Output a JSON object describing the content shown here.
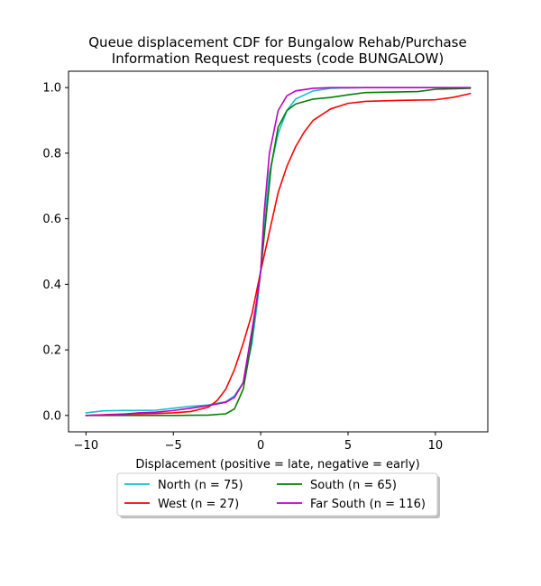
{
  "chart_data": {
    "type": "line",
    "title_lines": [
      "Queue displacement CDF for Bungalow Rehab/Purchase",
      "Information Request  requests (code BUNGALOW)"
    ],
    "xlabel": "Displacement (positive = late, negative = early)",
    "ylabel": "",
    "xlim": [
      -11,
      13
    ],
    "ylim": [
      -0.05,
      1.05
    ],
    "xticks": [
      -10,
      -5,
      0,
      5,
      10
    ],
    "yticks": [
      0.0,
      0.2,
      0.4,
      0.6,
      0.8,
      1.0
    ],
    "xtick_labels": [
      "−10",
      "−5",
      "0",
      "5",
      "10"
    ],
    "ytick_labels": [
      "0.0",
      "0.2",
      "0.4",
      "0.6",
      "0.8",
      "1.0"
    ],
    "grid": false,
    "legend_position": "bottom-center",
    "series": [
      {
        "name": "North (n = 75)",
        "color": "#17becf",
        "points": [
          [
            -10,
            0.008
          ],
          [
            -9,
            0.014
          ],
          [
            -8,
            0.015
          ],
          [
            -7,
            0.015
          ],
          [
            -6,
            0.016
          ],
          [
            -5,
            0.022
          ],
          [
            -4,
            0.028
          ],
          [
            -3,
            0.032
          ],
          [
            -2,
            0.042
          ],
          [
            -1.5,
            0.06
          ],
          [
            -1,
            0.1
          ],
          [
            -0.5,
            0.22
          ],
          [
            -0.2,
            0.34
          ],
          [
            0,
            0.44
          ],
          [
            0.2,
            0.58
          ],
          [
            0.5,
            0.74
          ],
          [
            1,
            0.86
          ],
          [
            1.5,
            0.93
          ],
          [
            2,
            0.965
          ],
          [
            3,
            0.99
          ],
          [
            4,
            0.998
          ],
          [
            6,
            1.0
          ],
          [
            12,
            1.0
          ]
        ]
      },
      {
        "name": "West (n = 27)",
        "color": "#ff0000",
        "points": [
          [
            -10,
            0.0
          ],
          [
            -8,
            0.004
          ],
          [
            -6,
            0.006
          ],
          [
            -5,
            0.008
          ],
          [
            -4,
            0.012
          ],
          [
            -3,
            0.025
          ],
          [
            -2.5,
            0.045
          ],
          [
            -2,
            0.08
          ],
          [
            -1.5,
            0.14
          ],
          [
            -1,
            0.22
          ],
          [
            -0.5,
            0.31
          ],
          [
            0,
            0.44
          ],
          [
            0.5,
            0.56
          ],
          [
            1,
            0.68
          ],
          [
            1.5,
            0.76
          ],
          [
            2,
            0.82
          ],
          [
            2.5,
            0.865
          ],
          [
            3,
            0.9
          ],
          [
            4,
            0.935
          ],
          [
            5,
            0.952
          ],
          [
            6,
            0.958
          ],
          [
            8,
            0.961
          ],
          [
            10,
            0.963
          ],
          [
            11,
            0.97
          ],
          [
            12,
            0.982
          ]
        ]
      },
      {
        "name": "South (n = 65)",
        "color": "#008000",
        "points": [
          [
            -10,
            0.0
          ],
          [
            -5,
            0.0
          ],
          [
            -3,
            0.001
          ],
          [
            -2,
            0.005
          ],
          [
            -1.5,
            0.02
          ],
          [
            -1,
            0.08
          ],
          [
            -0.6,
            0.2
          ],
          [
            -0.3,
            0.32
          ],
          [
            0,
            0.44
          ],
          [
            0.3,
            0.6
          ],
          [
            0.6,
            0.76
          ],
          [
            1,
            0.88
          ],
          [
            1.5,
            0.93
          ],
          [
            2,
            0.95
          ],
          [
            3,
            0.965
          ],
          [
            4,
            0.97
          ],
          [
            5,
            0.978
          ],
          [
            6,
            0.985
          ],
          [
            8,
            0.987
          ],
          [
            9,
            0.988
          ],
          [
            10,
            0.995
          ],
          [
            12,
            0.998
          ]
        ]
      },
      {
        "name": "Far South (n = 116)",
        "color": "#bf00bf",
        "points": [
          [
            -10,
            0.0
          ],
          [
            -8,
            0.003
          ],
          [
            -7,
            0.008
          ],
          [
            -6,
            0.01
          ],
          [
            -5,
            0.015
          ],
          [
            -4,
            0.022
          ],
          [
            -3,
            0.03
          ],
          [
            -2,
            0.04
          ],
          [
            -1.5,
            0.055
          ],
          [
            -1,
            0.1
          ],
          [
            -0.5,
            0.26
          ],
          [
            -0.2,
            0.36
          ],
          [
            0,
            0.44
          ],
          [
            0.2,
            0.62
          ],
          [
            0.5,
            0.8
          ],
          [
            1,
            0.93
          ],
          [
            1.5,
            0.975
          ],
          [
            2,
            0.99
          ],
          [
            3,
            0.998
          ],
          [
            4,
            1.0
          ],
          [
            12,
            1.0
          ]
        ]
      }
    ]
  }
}
